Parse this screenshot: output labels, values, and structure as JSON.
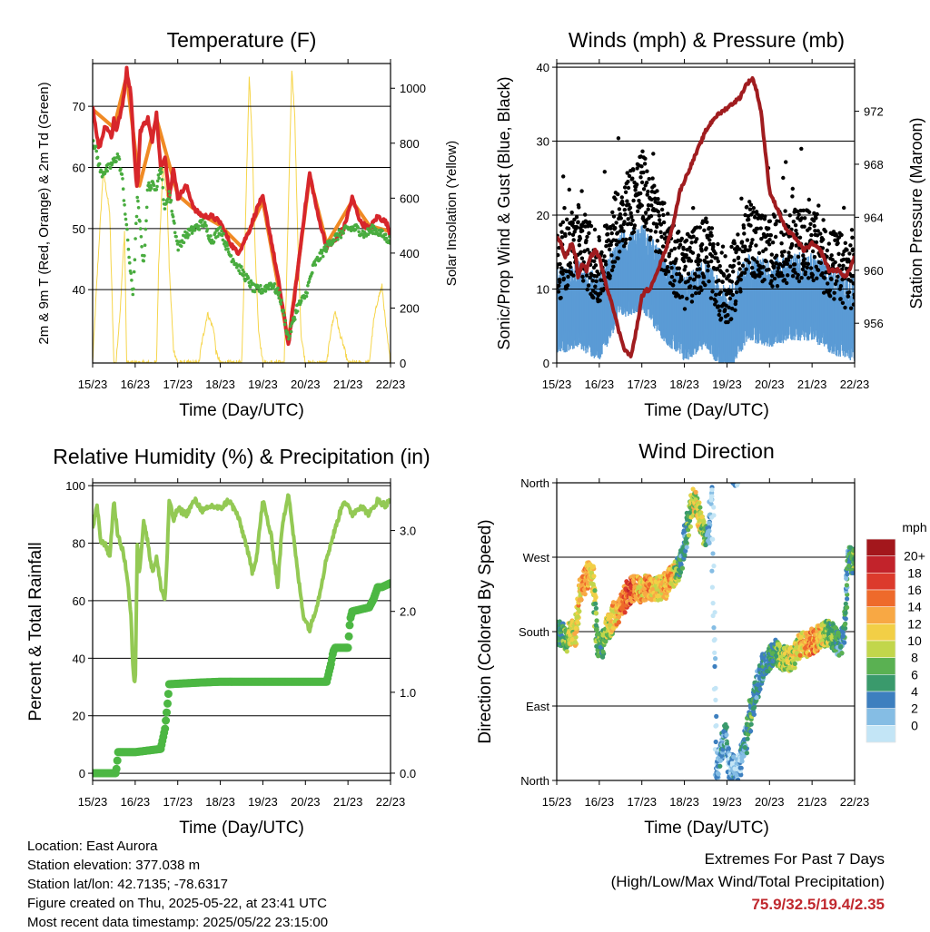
{
  "chart_data": [
    {
      "type": "line",
      "title": "Temperature (F)",
      "xlabel": "Time (Day/UTC)",
      "ylabel": "2m & 9m T (Red, Orange) & 2m Td (Green)",
      "y2label": "Solar Insolation (Yellow)",
      "x_ticks": [
        "15/23",
        "16/23",
        "17/23",
        "18/23",
        "19/23",
        "20/23",
        "21/23",
        "22/23"
      ],
      "xlim": [
        0,
        7
      ],
      "ylim": [
        28,
        77
      ],
      "y_ticks": [
        40,
        50,
        60,
        70
      ],
      "y2lim": [
        0,
        1090
      ],
      "y2_ticks": [
        0,
        200,
        400,
        600,
        800,
        1000
      ],
      "grid": "horizontal",
      "series": [
        {
          "name": "2m T",
          "color": "#d7262b",
          "x": [
            0,
            0.15,
            0.3,
            0.45,
            0.5,
            0.55,
            0.7,
            0.8,
            0.9,
            1.0,
            1.05,
            1.12,
            1.2,
            1.3,
            1.4,
            1.5,
            1.6,
            1.7,
            1.8,
            1.9,
            2.0,
            2.2,
            2.4,
            2.6,
            2.8,
            3.0,
            3.2,
            3.4,
            3.5,
            3.7,
            3.9,
            4.0,
            4.2,
            4.4,
            4.6,
            4.8,
            4.95,
            5.1,
            5.3,
            5.5,
            5.7,
            5.9,
            6.1,
            6.3,
            6.5,
            6.7,
            6.9,
            7.0
          ],
          "y": [
            70,
            63,
            67,
            65,
            68,
            66,
            70,
            76,
            72,
            60,
            56,
            66,
            67,
            68,
            64,
            69,
            60,
            62,
            55,
            60,
            55,
            57,
            53,
            52,
            52,
            51,
            48,
            46,
            47,
            50,
            54,
            55,
            48,
            40,
            31,
            42,
            51,
            59,
            52,
            47,
            48,
            50,
            55,
            51,
            50,
            52,
            51,
            49
          ]
        },
        {
          "name": "9m T",
          "color": "#f08a24",
          "x": [
            0,
            0.5,
            0.8,
            1.1,
            1.5,
            2.0,
            2.5,
            3.0,
            3.5,
            4.0,
            4.6,
            5.1,
            5.5,
            6.1,
            6.5,
            7.0
          ],
          "y": [
            69.5,
            66.5,
            75,
            57,
            68,
            55.5,
            52.5,
            50.5,
            47,
            54.5,
            31.5,
            58.5,
            47.5,
            54.5,
            50.5,
            49.5
          ]
        },
        {
          "name": "2m Td",
          "color": "#49ac3f",
          "x": [
            0,
            0.2,
            0.4,
            0.6,
            0.7,
            0.8,
            0.9,
            0.95,
            1.05,
            1.2,
            1.3,
            1.5,
            1.6,
            1.7,
            1.8,
            2.0,
            2.2,
            2.4,
            2.6,
            2.8,
            3.0,
            3.2,
            3.4,
            3.6,
            3.8,
            4.0,
            4.2,
            4.4,
            4.6,
            4.8,
            5.0,
            5.2,
            5.4,
            5.6,
            5.8,
            6.0,
            6.2,
            6.4,
            6.6,
            6.8,
            7.0
          ],
          "y": [
            65,
            59,
            60,
            62,
            58,
            50,
            42,
            39,
            55,
            44,
            57,
            57,
            60,
            53,
            56,
            47,
            49,
            50,
            51,
            48,
            50,
            46,
            44,
            42,
            40,
            40,
            41,
            39,
            32,
            37,
            39,
            44,
            46,
            48,
            49,
            50,
            50,
            49,
            50,
            49,
            48
          ]
        },
        {
          "name": "Solar Insolation",
          "axis": "y2",
          "color": "#f6d54a",
          "x": [
            0,
            0.1,
            0.25,
            0.4,
            0.5,
            0.55,
            0.65,
            0.75,
            0.8,
            0.9,
            1.0,
            1.1,
            1.2,
            1.5,
            1.55,
            1.65,
            1.75,
            1.8,
            1.9,
            2.0,
            2.5,
            2.55,
            2.7,
            2.85,
            2.9,
            3.0,
            3.5,
            3.55,
            3.62,
            3.68,
            3.75,
            3.82,
            3.9,
            4.0,
            4.5,
            4.55,
            4.62,
            4.68,
            4.75,
            4.82,
            4.9,
            5.0,
            5.5,
            5.6,
            5.7,
            5.8,
            5.9,
            6.0,
            6.5,
            6.6,
            6.7,
            6.8,
            6.9,
            7.0
          ],
          "y": [
            0,
            300,
            700,
            550,
            0,
            0,
            200,
            480,
            0,
            0,
            0,
            0,
            0,
            0,
            350,
            720,
            600,
            350,
            50,
            0,
            0,
            60,
            180,
            120,
            40,
            0,
            0,
            250,
            700,
            1050,
            800,
            400,
            120,
            0,
            0,
            250,
            700,
            1060,
            900,
            450,
            100,
            0,
            0,
            120,
            190,
            110,
            60,
            0,
            0,
            150,
            230,
            280,
            120,
            0
          ]
        }
      ]
    },
    {
      "type": "scatter",
      "title": "Winds (mph) & Pressure (mb)",
      "xlabel": "Time (Day/UTC)",
      "ylabel": "Sonic/Prop Wind & Gust (Blue, Black)",
      "y2label": "Station Pressure (Maroon)",
      "x_ticks": [
        "15/23",
        "16/23",
        "17/23",
        "18/23",
        "19/23",
        "20/23",
        "21/23",
        "22/23"
      ],
      "xlim": [
        0,
        7
      ],
      "ylim": [
        0,
        40.5
      ],
      "y_ticks": [
        0,
        10,
        20,
        30,
        40
      ],
      "y2lim": [
        953,
        975.6
      ],
      "y2_ticks": [
        956,
        960,
        964,
        968,
        972
      ],
      "grid": "horizontal",
      "series": [
        {
          "name": "Wind",
          "color": "#5a9bd5",
          "x": [
            0,
            0.5,
            1.0,
            1.5,
            2.0,
            2.5,
            3.0,
            3.5,
            4.0,
            4.5,
            5.0,
            5.5,
            6.0,
            6.5,
            7.0
          ],
          "y": [
            7,
            8,
            6,
            12,
            13,
            9,
            6,
            8,
            4,
            9,
            8,
            9,
            9,
            7,
            6
          ]
        },
        {
          "name": "Gust",
          "color": "#000000",
          "x": [
            0,
            0.5,
            1.0,
            1.5,
            2.0,
            2.5,
            3.0,
            3.5,
            4.0,
            4.5,
            5.0,
            5.5,
            6.0,
            6.5,
            7.0
          ],
          "y": [
            13,
            17,
            12,
            20,
            24,
            17,
            12,
            15,
            9,
            17,
            15,
            16,
            16,
            13,
            12
          ]
        },
        {
          "name": "Station Pressure",
          "axis": "y2",
          "color": "#a01c1f",
          "x": [
            0,
            0.1,
            0.2,
            0.35,
            0.45,
            0.5,
            0.6,
            0.7,
            0.8,
            0.9,
            1.0,
            1.15,
            1.3,
            1.45,
            1.6,
            1.75,
            1.9,
            2.0,
            2.1,
            2.2,
            2.3,
            2.5,
            2.7,
            2.9,
            3.1,
            3.3,
            3.5,
            3.7,
            3.9,
            4.1,
            4.3,
            4.45,
            4.6,
            4.7,
            4.8,
            4.9,
            5.0,
            5.2,
            5.4,
            5.6,
            5.8,
            6.0,
            6.2,
            6.4,
            6.6,
            6.8,
            7.0
          ],
          "y": [
            962.5,
            962,
            961,
            962,
            961,
            959.5,
            960.5,
            960,
            961,
            961.5,
            961,
            959,
            957.5,
            955.5,
            954,
            953.5,
            956,
            958,
            958.5,
            958.5,
            959.5,
            961,
            963,
            966,
            967.5,
            969,
            970.5,
            971.5,
            972,
            972.5,
            973,
            974,
            974.5,
            973.5,
            972,
            969,
            966,
            964.5,
            963,
            962.5,
            961.5,
            962,
            961.5,
            960,
            960,
            959.5,
            961
          ]
        }
      ]
    },
    {
      "type": "line",
      "title": "Relative Humidity (%) & Precipitation (in)",
      "xlabel": "Time (Day/UTC)",
      "ylabel": "Percent & Total Rainfall",
      "x_ticks": [
        "15/23",
        "16/23",
        "17/23",
        "18/23",
        "19/23",
        "20/23",
        "21/23",
        "22/23"
      ],
      "xlim": [
        0,
        7
      ],
      "ylim": [
        -2.5,
        101
      ],
      "y_ticks": [
        0,
        20,
        40,
        60,
        80,
        100
      ],
      "y2lim": [
        -0.09,
        3.59
      ],
      "y2_ticks": [
        "0.0",
        "1.0",
        "2.0",
        "3.0"
      ],
      "grid": "horizontal",
      "series": [
        {
          "name": "Relative Humidity",
          "color": "#93c954",
          "x": [
            0,
            0.1,
            0.2,
            0.3,
            0.4,
            0.5,
            0.55,
            0.6,
            0.7,
            0.8,
            0.9,
            0.95,
            1.0,
            1.05,
            1.1,
            1.2,
            1.3,
            1.4,
            1.5,
            1.6,
            1.7,
            1.75,
            1.8,
            1.9,
            2.0,
            2.2,
            2.4,
            2.6,
            2.8,
            3.0,
            3.2,
            3.4,
            3.6,
            3.75,
            3.85,
            4.0,
            4.2,
            4.35,
            4.45,
            4.6,
            4.8,
            4.95,
            5.1,
            5.3,
            5.5,
            5.7,
            5.9,
            6.1,
            6.3,
            6.5,
            6.7,
            6.9,
            7.0
          ],
          "y": [
            85,
            93,
            80,
            80,
            75,
            95,
            88,
            82,
            78,
            70,
            55,
            35,
            30,
            80,
            70,
            88,
            80,
            70,
            75,
            65,
            60,
            75,
            95,
            88,
            92,
            90,
            95,
            91,
            93,
            92,
            95,
            90,
            80,
            70,
            75,
            95,
            82,
            65,
            85,
            98,
            72,
            55,
            50,
            60,
            75,
            85,
            95,
            90,
            93,
            90,
            95,
            93,
            96
          ]
        },
        {
          "name": "Total Precipitation",
          "axis": "y2",
          "color": "#4cb743",
          "x": [
            0,
            0.55,
            0.6,
            0.7,
            1.0,
            1.6,
            1.7,
            1.75,
            1.8,
            2.5,
            3.0,
            4.0,
            5.0,
            5.5,
            5.6,
            5.65,
            5.7,
            6.0,
            6.05,
            6.1,
            6.5,
            6.6,
            6.7,
            6.8,
            7.0
          ],
          "y": [
            0.0,
            0.0,
            0.26,
            0.26,
            0.26,
            0.3,
            0.55,
            0.8,
            1.1,
            1.12,
            1.13,
            1.13,
            1.13,
            1.13,
            1.35,
            1.5,
            1.55,
            1.55,
            1.9,
            2.0,
            2.05,
            2.15,
            2.3,
            2.3,
            2.35
          ]
        }
      ]
    },
    {
      "type": "scatter",
      "title": "Wind Direction",
      "xlabel": "Time (Day/UTC)",
      "ylabel": "Direction (Colored By Speed)",
      "x_ticks": [
        "15/23",
        "16/23",
        "17/23",
        "18/23",
        "19/23",
        "20/23",
        "21/23",
        "22/23"
      ],
      "xlim": [
        0,
        7
      ],
      "ylim": [
        0,
        360
      ],
      "y_ticks": [
        0,
        90,
        180,
        270,
        360
      ],
      "y_tick_labels": [
        "North",
        "East",
        "South",
        "West",
        "North"
      ],
      "grid": "horizontal",
      "colorbar": {
        "title": "mph",
        "labels": [
          "20+",
          "18",
          "16",
          "14",
          "12",
          "10",
          "8",
          "6",
          "4",
          "2",
          "0"
        ],
        "colors": [
          "#a3171c",
          "#c2232b",
          "#dc3a2c",
          "#ee6a2b",
          "#f8a844",
          "#f2cf46",
          "#c2d64b",
          "#5ab152",
          "#3a9a6c",
          "#3d7fbf",
          "#85bde4",
          "#c3e5f6"
        ]
      },
      "series": [
        {
          "name": "Direction",
          "x": [
            0.05,
            0.15,
            0.25,
            0.35,
            0.45,
            0.55,
            0.65,
            0.75,
            0.85,
            0.95,
            1.05,
            1.15,
            1.25,
            1.35,
            1.45,
            1.55,
            1.65,
            1.75,
            1.85,
            1.95,
            2.05,
            2.15,
            2.25,
            2.35,
            2.45,
            2.55,
            2.65,
            2.75,
            2.85,
            2.95,
            3.05,
            3.15,
            3.25,
            3.35,
            3.45,
            3.55,
            3.65,
            3.75,
            3.85,
            3.95,
            4.05,
            4.15,
            4.25,
            4.35,
            4.45,
            4.55,
            4.65,
            4.75,
            4.85,
            4.95,
            5.05,
            5.15,
            5.25,
            5.35,
            5.45,
            5.55,
            5.65,
            5.75,
            5.85,
            5.95,
            6.05,
            6.15,
            6.25,
            6.35,
            6.45,
            6.55,
            6.65,
            6.75,
            6.85,
            6.95
          ],
          "y": [
            178,
            175,
            170,
            182,
            176,
            228,
            240,
            250,
            245,
            170,
            160,
            180,
            188,
            200,
            205,
            215,
            225,
            230,
            235,
            230,
            233,
            232,
            233,
            232,
            233,
            235,
            245,
            250,
            255,
            270,
            300,
            330,
            340,
            320,
            300,
            290,
            350,
            10,
            30,
            60,
            20,
            15,
            8,
            30,
            50,
            80,
            100,
            120,
            140,
            145,
            150,
            155,
            150,
            148,
            147,
            148,
            160,
            165,
            163,
            166,
            170,
            172,
            175,
            178,
            178,
            170,
            165,
            175,
            270,
            265
          ],
          "speed": [
            6,
            8,
            10,
            12,
            12,
            14,
            16,
            14,
            12,
            8,
            8,
            10,
            12,
            14,
            14,
            16,
            18,
            18,
            16,
            14,
            14,
            16,
            14,
            12,
            12,
            14,
            16,
            14,
            8,
            6,
            6,
            10,
            12,
            12,
            10,
            6,
            2,
            2,
            4,
            6,
            2,
            4,
            2,
            4,
            6,
            8,
            6,
            4,
            6,
            6,
            8,
            8,
            10,
            10,
            12,
            12,
            12,
            14,
            14,
            16,
            16,
            14,
            12,
            10,
            8,
            8,
            6,
            6,
            6,
            8
          ]
        }
      ]
    }
  ],
  "station_info": {
    "location": "Location: East Aurora",
    "elevation": "Station elevation: 377.038 m",
    "latlon": "Station lat/lon: 42.7135; -78.6317",
    "created": "Figure created on Thu, 2025-05-22, at 23:41 UTC",
    "latest": "Most recent data timestamp: 2025/05/22 23:15:00"
  },
  "extremes": {
    "title": "Extremes For Past 7 Days",
    "subtitle": "(High/Low/Max Wind/Total Precipitation)",
    "values": "75.9/32.5/19.4/2.35"
  }
}
